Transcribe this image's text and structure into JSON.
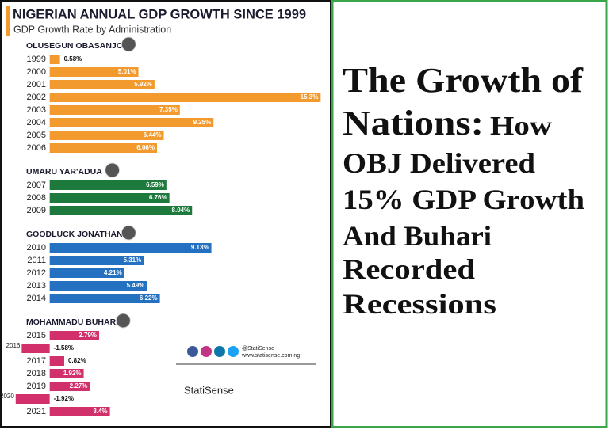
{
  "chart_data": {
    "type": "bar",
    "title": "NIGERIAN ANNUAL GDP GROWTH SINCE 1999",
    "subtitle": "GDP Growth Rate by Administration",
    "xlim": [
      -2,
      16
    ],
    "groups": [
      {
        "name": "OLUSEGUN OBASANJO",
        "color": "#f39a2e",
        "categories": [
          "1999",
          "2000",
          "2001",
          "2002",
          "2003",
          "2004",
          "2005",
          "2006"
        ],
        "values": [
          0.58,
          5.01,
          5.92,
          15.3,
          7.35,
          9.25,
          6.44,
          6.06
        ],
        "value_labels": [
          "0.58%",
          "5.01%",
          "5.92%",
          "15.3%",
          "7.35%",
          "9.25%",
          "6.44%",
          "6.06%"
        ]
      },
      {
        "name": "UMARU YAR'ADUA",
        "color": "#1d7a3c",
        "categories": [
          "2007",
          "2008",
          "2009"
        ],
        "values": [
          6.59,
          6.76,
          8.04
        ],
        "value_labels": [
          "6.59%",
          "6.76%",
          "8.04%"
        ]
      },
      {
        "name": "GOODLUCK JONATHAN",
        "color": "#2471c1",
        "categories": [
          "2010",
          "2011",
          "2012",
          "2013",
          "2014"
        ],
        "values": [
          9.13,
          5.31,
          4.21,
          5.49,
          6.22
        ],
        "value_labels": [
          "9.13%",
          "5.31%",
          "4.21%",
          "5.49%",
          "6.22%"
        ]
      },
      {
        "name": "MOHAMMADU BUHARI",
        "color": "#d1306b",
        "categories": [
          "2015",
          "2016",
          "2017",
          "2018",
          "2019",
          "2020",
          "2021"
        ],
        "values": [
          2.79,
          -1.58,
          0.82,
          1.92,
          2.27,
          -1.92,
          3.4
        ],
        "value_labels": [
          "2.79%",
          "-1.58%",
          "0.82%",
          "1.92%",
          "2.27%",
          "-1.92%",
          "3.4%"
        ]
      }
    ],
    "footer": {
      "handle": "@StatiSense",
      "website": "www.statisense.com.ng",
      "brand": "StatiSense"
    }
  },
  "headline": {
    "line1": "The Growth of",
    "line2a": "Nations:",
    "line2b": "How",
    "line3": "OBJ Delivered",
    "line4": "15% GDP Growth",
    "line5": "And Buhari",
    "line6": "Recorded",
    "line7": "Recessions"
  }
}
